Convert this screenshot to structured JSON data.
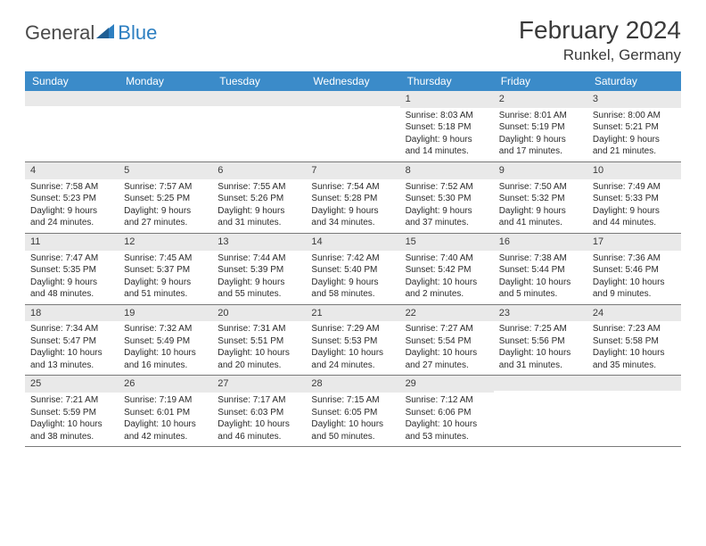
{
  "brand": {
    "name1": "General",
    "name2": "Blue"
  },
  "title": "February 2024",
  "location": "Runkel, Germany",
  "colors": {
    "header_bg": "#3b8bc9",
    "header_text": "#ffffff",
    "daynum_bg": "#e9e9e9",
    "text": "#2b2b2b",
    "brand_gray": "#4a4a4a",
    "brand_blue": "#2d7fc1",
    "rule": "#7a7a7a"
  },
  "day_headers": [
    "Sunday",
    "Monday",
    "Tuesday",
    "Wednesday",
    "Thursday",
    "Friday",
    "Saturday"
  ],
  "weeks": [
    [
      {
        "n": "",
        "sr": "",
        "ss": "",
        "dl": ""
      },
      {
        "n": "",
        "sr": "",
        "ss": "",
        "dl": ""
      },
      {
        "n": "",
        "sr": "",
        "ss": "",
        "dl": ""
      },
      {
        "n": "",
        "sr": "",
        "ss": "",
        "dl": ""
      },
      {
        "n": "1",
        "sr": "Sunrise: 8:03 AM",
        "ss": "Sunset: 5:18 PM",
        "dl": "Daylight: 9 hours and 14 minutes."
      },
      {
        "n": "2",
        "sr": "Sunrise: 8:01 AM",
        "ss": "Sunset: 5:19 PM",
        "dl": "Daylight: 9 hours and 17 minutes."
      },
      {
        "n": "3",
        "sr": "Sunrise: 8:00 AM",
        "ss": "Sunset: 5:21 PM",
        "dl": "Daylight: 9 hours and 21 minutes."
      }
    ],
    [
      {
        "n": "4",
        "sr": "Sunrise: 7:58 AM",
        "ss": "Sunset: 5:23 PM",
        "dl": "Daylight: 9 hours and 24 minutes."
      },
      {
        "n": "5",
        "sr": "Sunrise: 7:57 AM",
        "ss": "Sunset: 5:25 PM",
        "dl": "Daylight: 9 hours and 27 minutes."
      },
      {
        "n": "6",
        "sr": "Sunrise: 7:55 AM",
        "ss": "Sunset: 5:26 PM",
        "dl": "Daylight: 9 hours and 31 minutes."
      },
      {
        "n": "7",
        "sr": "Sunrise: 7:54 AM",
        "ss": "Sunset: 5:28 PM",
        "dl": "Daylight: 9 hours and 34 minutes."
      },
      {
        "n": "8",
        "sr": "Sunrise: 7:52 AM",
        "ss": "Sunset: 5:30 PM",
        "dl": "Daylight: 9 hours and 37 minutes."
      },
      {
        "n": "9",
        "sr": "Sunrise: 7:50 AM",
        "ss": "Sunset: 5:32 PM",
        "dl": "Daylight: 9 hours and 41 minutes."
      },
      {
        "n": "10",
        "sr": "Sunrise: 7:49 AM",
        "ss": "Sunset: 5:33 PM",
        "dl": "Daylight: 9 hours and 44 minutes."
      }
    ],
    [
      {
        "n": "11",
        "sr": "Sunrise: 7:47 AM",
        "ss": "Sunset: 5:35 PM",
        "dl": "Daylight: 9 hours and 48 minutes."
      },
      {
        "n": "12",
        "sr": "Sunrise: 7:45 AM",
        "ss": "Sunset: 5:37 PM",
        "dl": "Daylight: 9 hours and 51 minutes."
      },
      {
        "n": "13",
        "sr": "Sunrise: 7:44 AM",
        "ss": "Sunset: 5:39 PM",
        "dl": "Daylight: 9 hours and 55 minutes."
      },
      {
        "n": "14",
        "sr": "Sunrise: 7:42 AM",
        "ss": "Sunset: 5:40 PM",
        "dl": "Daylight: 9 hours and 58 minutes."
      },
      {
        "n": "15",
        "sr": "Sunrise: 7:40 AM",
        "ss": "Sunset: 5:42 PM",
        "dl": "Daylight: 10 hours and 2 minutes."
      },
      {
        "n": "16",
        "sr": "Sunrise: 7:38 AM",
        "ss": "Sunset: 5:44 PM",
        "dl": "Daylight: 10 hours and 5 minutes."
      },
      {
        "n": "17",
        "sr": "Sunrise: 7:36 AM",
        "ss": "Sunset: 5:46 PM",
        "dl": "Daylight: 10 hours and 9 minutes."
      }
    ],
    [
      {
        "n": "18",
        "sr": "Sunrise: 7:34 AM",
        "ss": "Sunset: 5:47 PM",
        "dl": "Daylight: 10 hours and 13 minutes."
      },
      {
        "n": "19",
        "sr": "Sunrise: 7:32 AM",
        "ss": "Sunset: 5:49 PM",
        "dl": "Daylight: 10 hours and 16 minutes."
      },
      {
        "n": "20",
        "sr": "Sunrise: 7:31 AM",
        "ss": "Sunset: 5:51 PM",
        "dl": "Daylight: 10 hours and 20 minutes."
      },
      {
        "n": "21",
        "sr": "Sunrise: 7:29 AM",
        "ss": "Sunset: 5:53 PM",
        "dl": "Daylight: 10 hours and 24 minutes."
      },
      {
        "n": "22",
        "sr": "Sunrise: 7:27 AM",
        "ss": "Sunset: 5:54 PM",
        "dl": "Daylight: 10 hours and 27 minutes."
      },
      {
        "n": "23",
        "sr": "Sunrise: 7:25 AM",
        "ss": "Sunset: 5:56 PM",
        "dl": "Daylight: 10 hours and 31 minutes."
      },
      {
        "n": "24",
        "sr": "Sunrise: 7:23 AM",
        "ss": "Sunset: 5:58 PM",
        "dl": "Daylight: 10 hours and 35 minutes."
      }
    ],
    [
      {
        "n": "25",
        "sr": "Sunrise: 7:21 AM",
        "ss": "Sunset: 5:59 PM",
        "dl": "Daylight: 10 hours and 38 minutes."
      },
      {
        "n": "26",
        "sr": "Sunrise: 7:19 AM",
        "ss": "Sunset: 6:01 PM",
        "dl": "Daylight: 10 hours and 42 minutes."
      },
      {
        "n": "27",
        "sr": "Sunrise: 7:17 AM",
        "ss": "Sunset: 6:03 PM",
        "dl": "Daylight: 10 hours and 46 minutes."
      },
      {
        "n": "28",
        "sr": "Sunrise: 7:15 AM",
        "ss": "Sunset: 6:05 PM",
        "dl": "Daylight: 10 hours and 50 minutes."
      },
      {
        "n": "29",
        "sr": "Sunrise: 7:12 AM",
        "ss": "Sunset: 6:06 PM",
        "dl": "Daylight: 10 hours and 53 minutes."
      },
      {
        "n": "",
        "sr": "",
        "ss": "",
        "dl": ""
      },
      {
        "n": "",
        "sr": "",
        "ss": "",
        "dl": ""
      }
    ]
  ]
}
